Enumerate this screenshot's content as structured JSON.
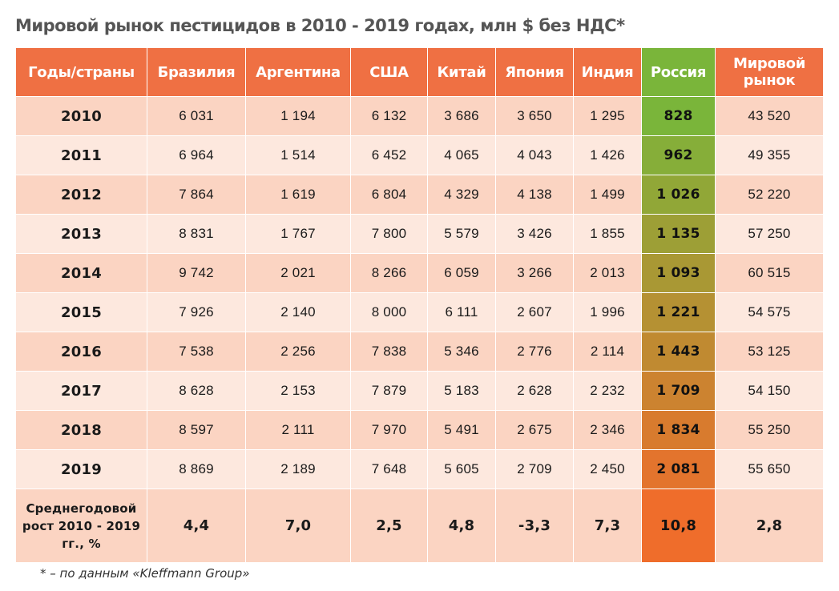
{
  "title": "Мировой рынок пестицидов в 2010 - 2019 годах, млн $ без НДС*",
  "footnote": "* – по данным «Kleffmann Group»",
  "colors": {
    "header": "#ef7043",
    "russia_header": "#7ab53a",
    "row_odd": "#fbd4c2",
    "row_even": "#fde8de",
    "russia_gradient_top": "#7ab53a",
    "russia_gradient_bottom": "#ef6d2b"
  },
  "chart_data": {
    "type": "table",
    "title": "Мировой рынок пестицидов в 2010 - 2019 годах, млн $ без НДС*",
    "columns": [
      "Годы/страны",
      "Бразилия",
      "Аргентина",
      "США",
      "Китай",
      "Япония",
      "Индия",
      "Россия",
      "Мировой рынок"
    ],
    "rows": [
      [
        "2010",
        "6 031",
        "1 194",
        "6 132",
        "3 686",
        "3 650",
        "1 295",
        "828",
        "43 520"
      ],
      [
        "2011",
        "6 964",
        "1 514",
        "6 452",
        "4 065",
        "4 043",
        "1 426",
        "962",
        "49 355"
      ],
      [
        "2012",
        "7 864",
        "1 619",
        "6 804",
        "4 329",
        "4 138",
        "1 499",
        "1 026",
        "52 220"
      ],
      [
        "2013",
        "8 831",
        "1 767",
        "7 800",
        "5 579",
        "3 426",
        "1 855",
        "1 135",
        "57 250"
      ],
      [
        "2014",
        "9 742",
        "2 021",
        "8 266",
        "6 059",
        "3 266",
        "2 013",
        "1 093",
        "60 515"
      ],
      [
        "2015",
        "7 926",
        "2 140",
        "8 000",
        "6 111",
        "2 607",
        "1 996",
        "1 221",
        "54 575"
      ],
      [
        "2016",
        "7 538",
        "2 256",
        "7 838",
        "5 346",
        "2 776",
        "2 114",
        "1 443",
        "53 125"
      ],
      [
        "2017",
        "8 628",
        "2 153",
        "7 879",
        "5 183",
        "2 628",
        "2 232",
        "1 709",
        "54 150"
      ],
      [
        "2018",
        "8 597",
        "2 111",
        "7 970",
        "5 491",
        "2 675",
        "2 346",
        "1 834",
        "55 250"
      ],
      [
        "2019",
        "8 869",
        "2 189",
        "7 648",
        "5 605",
        "2 709",
        "2 450",
        "2 081",
        "55 650"
      ]
    ],
    "growth_row": [
      "Среднегодовой рост 2010 - 2019 гг., %",
      "4,4",
      "7,0",
      "2,5",
      "4,8",
      "-3,3",
      "7,3",
      "10,8",
      "2,8"
    ]
  }
}
